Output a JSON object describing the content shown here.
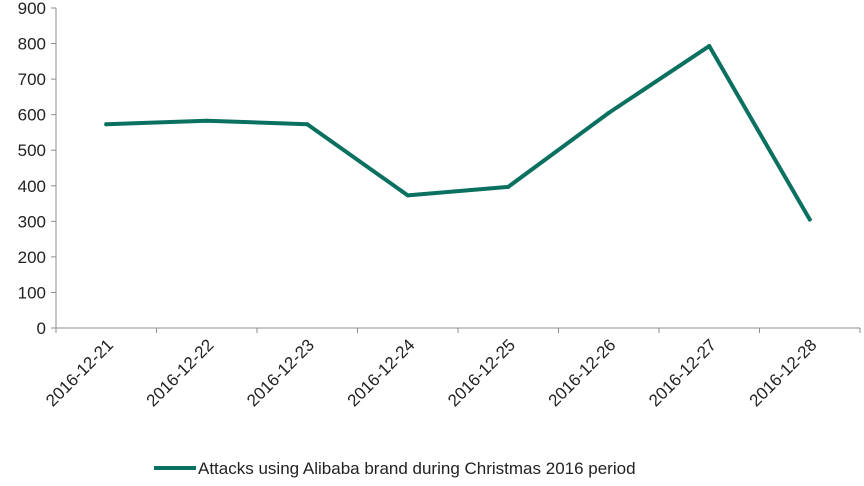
{
  "chart_data": {
    "type": "line",
    "title": "",
    "xlabel": "",
    "ylabel": "",
    "categories": [
      "2016-12-21",
      "2016-12-22",
      "2016-12-23",
      "2016-12-24",
      "2016-12-25",
      "2016-12-26",
      "2016-12-27",
      "2016-12-28"
    ],
    "series": [
      {
        "name": "Attacks using Alibaba brand during Christmas 2016 period",
        "color": "#0a7060",
        "values": [
          573,
          583,
          573,
          373,
          397,
          605,
          793,
          305
        ]
      }
    ],
    "ylim": [
      0,
      900
    ],
    "yticks": [
      0,
      100,
      200,
      300,
      400,
      500,
      600,
      700,
      800,
      900
    ],
    "grid": false,
    "legend": "bottom-center"
  }
}
